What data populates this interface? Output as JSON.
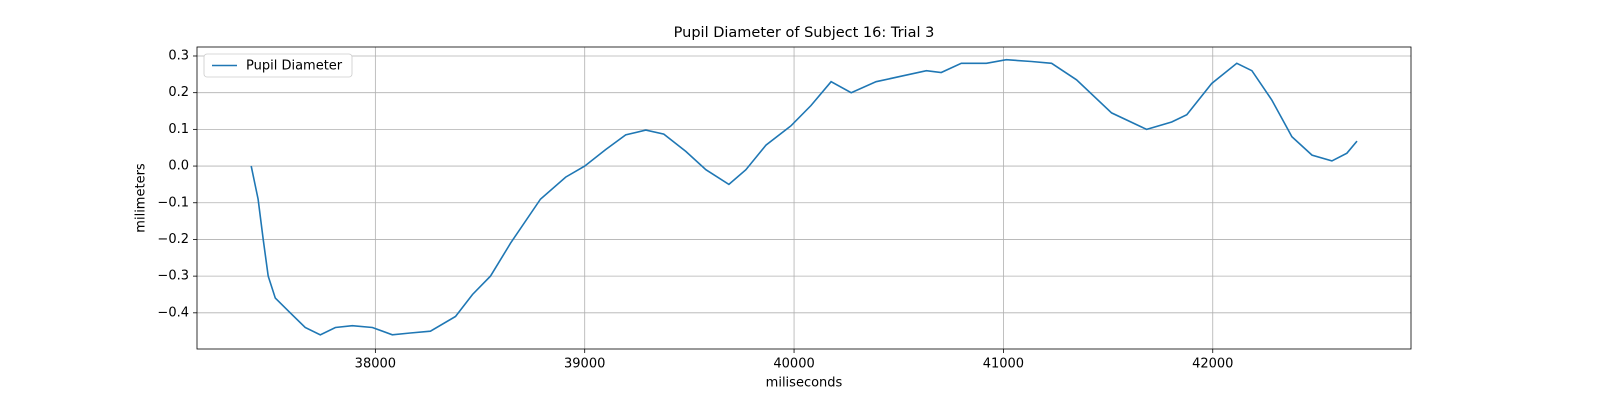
{
  "chart_data": {
    "type": "line",
    "title": "Pupil Diameter of Subject 16: Trial 3",
    "xlabel": "miliseconds",
    "ylabel": "milimeters",
    "x": [
      37407,
      37440,
      37464,
      37488,
      37522,
      37593,
      37665,
      37737,
      37809,
      37890,
      37986,
      38081,
      38167,
      38263,
      38383,
      38464,
      38550,
      38646,
      38789,
      38909,
      39000,
      39100,
      39196,
      39292,
      39378,
      39483,
      39579,
      39689,
      39770,
      39866,
      39986,
      40081,
      40177,
      40273,
      40392,
      40512,
      40632,
      40703,
      40799,
      40919,
      41014,
      41134,
      41230,
      41349,
      41517,
      41684,
      41804,
      41876,
      41995,
      42115,
      42187,
      42282,
      42378,
      42474,
      42569,
      42641,
      42689
    ],
    "series": [
      {
        "name": "Pupil Diameter",
        "color": "#1f77b4",
        "values": [
          0,
          -0.09,
          -0.2,
          -0.3,
          -0.36,
          -0.4,
          -0.44,
          -0.46,
          -0.44,
          -0.435,
          -0.44,
          -0.46,
          -0.455,
          -0.45,
          -0.41,
          -0.35,
          -0.3,
          -0.21,
          -0.09,
          -0.03,
          0,
          0.045,
          0.085,
          0.098,
          0.087,
          0.04,
          -0.01,
          -0.05,
          -0.01,
          0.057,
          0.11,
          0.165,
          0.23,
          0.2,
          0.23,
          0.245,
          0.26,
          0.255,
          0.28,
          0.28,
          0.29,
          0.285,
          0.28,
          0.235,
          0.145,
          0.1,
          0.12,
          0.14,
          0.225,
          0.28,
          0.26,
          0.18,
          0.08,
          0.03,
          0.014,
          0.035,
          0.068
        ]
      }
    ],
    "xlim": [
      37148,
      42947
    ],
    "ylim": [
      -0.4986,
      0.3245
    ],
    "xticks": [
      38000,
      39000,
      40000,
      41000,
      42000
    ],
    "yticks": [
      {
        "value": -0.4,
        "label": "−0.4"
      },
      {
        "value": -0.3,
        "label": "−0.3"
      },
      {
        "value": -0.2,
        "label": "−0.2"
      },
      {
        "value": -0.1,
        "label": "−0.1"
      },
      {
        "value": 0,
        "label": "0.0"
      },
      0.1,
      0.2,
      0.3
    ],
    "grid": true,
    "legend": "upper left"
  }
}
